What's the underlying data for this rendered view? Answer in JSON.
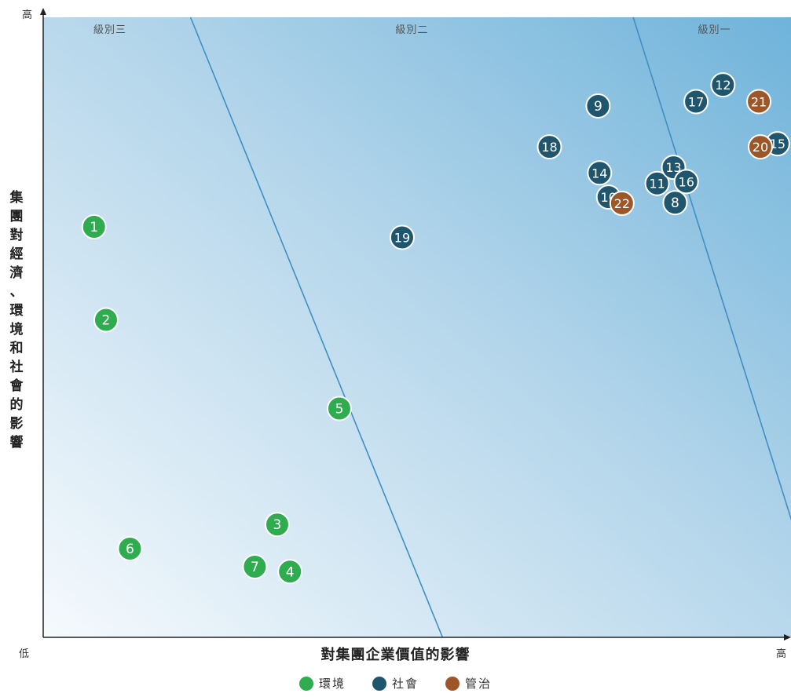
{
  "chart_data": {
    "type": "scatter",
    "title": "",
    "xlabel": "對集團企業價值的影響",
    "ylabel": "集團對經濟、環境和社會的影響",
    "x_low_label": "低",
    "x_high_label": "高",
    "y_high_label": "高",
    "xlim": [
      0,
      100
    ],
    "ylim": [
      0,
      100
    ],
    "grid": false,
    "legend_position": "bottom",
    "zones": [
      {
        "label": "級別三"
      },
      {
        "label": "級別二"
      },
      {
        "label": "級別一"
      }
    ],
    "zone_boundaries": [
      {
        "x_at_top": 19.7,
        "x_at_bottom": 53.4
      },
      {
        "x_at_top": 78.9,
        "x_at_bottom": 105.0
      }
    ],
    "series": [
      {
        "name": "環境",
        "color": "#2fac4f"
      },
      {
        "name": "社會",
        "color": "#1f566e"
      },
      {
        "name": "管治",
        "color": "#9c5627"
      }
    ],
    "points": [
      {
        "label": "1",
        "series": 0,
        "x": 6.8,
        "y": 66.2
      },
      {
        "label": "2",
        "series": 0,
        "x": 8.4,
        "y": 51.2
      },
      {
        "label": "3",
        "series": 0,
        "x": 31.3,
        "y": 18.2
      },
      {
        "label": "4",
        "series": 0,
        "x": 33.0,
        "y": 10.6
      },
      {
        "label": "5",
        "series": 0,
        "x": 39.6,
        "y": 36.9
      },
      {
        "label": "6",
        "series": 0,
        "x": 11.6,
        "y": 14.3
      },
      {
        "label": "7",
        "series": 0,
        "x": 28.3,
        "y": 11.4
      },
      {
        "label": "8",
        "series": 1,
        "x": 84.5,
        "y": 70.1
      },
      {
        "label": "9",
        "series": 1,
        "x": 74.2,
        "y": 85.7
      },
      {
        "label": "10",
        "series": 1,
        "x": 75.6,
        "y": 71.0
      },
      {
        "label": "11",
        "series": 1,
        "x": 82.1,
        "y": 73.2
      },
      {
        "label": "12",
        "series": 1,
        "x": 90.9,
        "y": 89.1
      },
      {
        "label": "13",
        "series": 1,
        "x": 84.3,
        "y": 75.8
      },
      {
        "label": "14",
        "series": 1,
        "x": 74.4,
        "y": 74.9
      },
      {
        "label": "15",
        "series": 1,
        "x": 98.2,
        "y": 79.6
      },
      {
        "label": "16",
        "series": 1,
        "x": 86.0,
        "y": 73.5
      },
      {
        "label": "17",
        "series": 1,
        "x": 87.3,
        "y": 86.4
      },
      {
        "label": "18",
        "series": 1,
        "x": 67.7,
        "y": 79.1
      },
      {
        "label": "19",
        "series": 1,
        "x": 48.0,
        "y": 64.5
      },
      {
        "label": "20",
        "series": 2,
        "x": 95.9,
        "y": 79.1
      },
      {
        "label": "21",
        "series": 2,
        "x": 95.7,
        "y": 86.4
      },
      {
        "label": "22",
        "series": 2,
        "x": 77.4,
        "y": 70.0
      }
    ]
  }
}
